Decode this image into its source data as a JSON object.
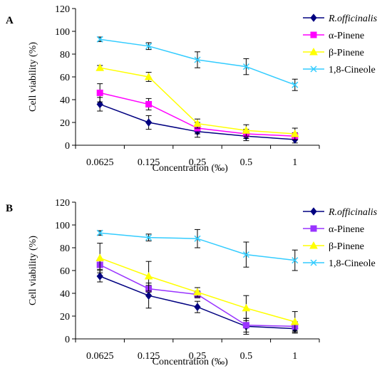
{
  "chart_data": [
    {
      "type": "line",
      "panel_label": "A",
      "categories": [
        "0.0625",
        "0.125",
        "0.25",
        "0.5",
        "1"
      ],
      "xlabel": "Concentration (‰)",
      "ylabel": "Cell viability (%)",
      "ylim": [
        0,
        120
      ],
      "yticks": [
        "0",
        "20",
        "40",
        "60",
        "80",
        "100",
        "120"
      ],
      "legend_position": "top-right",
      "grid": false,
      "series": [
        {
          "name": "R.officinalis",
          "italic": true,
          "color": "#000080",
          "marker": "diamond",
          "values": [
            36,
            20,
            12,
            8,
            5
          ],
          "errors": [
            6,
            6,
            5,
            4,
            3
          ]
        },
        {
          "name": "α-Pinene",
          "color": "#ff00ff",
          "marker": "square",
          "values": [
            46,
            36,
            15,
            10,
            8
          ],
          "errors": [
            8,
            5,
            5,
            4,
            3
          ]
        },
        {
          "name": "β-Pinene",
          "color": "#ffff00",
          "marker": "triangle",
          "values": [
            68,
            60,
            19,
            13,
            10
          ],
          "errors": [
            2,
            4,
            4,
            5,
            5
          ]
        },
        {
          "name": "1,8-Cineole",
          "color": "#33ccff",
          "marker": "x",
          "values": [
            93,
            87,
            75,
            69,
            53
          ],
          "errors": [
            2,
            3,
            7,
            7,
            5
          ]
        }
      ]
    },
    {
      "type": "line",
      "panel_label": "B",
      "categories": [
        "0.0625",
        "0.125",
        "0.25",
        "0.5",
        "1"
      ],
      "xlabel": "Concentration (‰)",
      "ylabel": "Cell viability (%)",
      "ylim": [
        0,
        120
      ],
      "yticks": [
        "0",
        "20",
        "40",
        "60",
        "80",
        "100",
        "120"
      ],
      "legend_position": "top-right",
      "grid": false,
      "series": [
        {
          "name": "R.officinalis",
          "italic": true,
          "color": "#000080",
          "marker": "diamond",
          "values": [
            55,
            38,
            28,
            11,
            9
          ],
          "errors": [
            5,
            11,
            5,
            7,
            4
          ]
        },
        {
          "name": "α-Pinene",
          "color": "#9933ff",
          "marker": "square",
          "values": [
            65,
            44,
            39,
            12,
            11
          ],
          "errors": [
            4,
            3,
            3,
            6,
            4
          ]
        },
        {
          "name": "β-Pinene",
          "color": "#ffff00",
          "marker": "triangle",
          "values": [
            71,
            55,
            41,
            27,
            15
          ],
          "errors": [
            13,
            13,
            4,
            11,
            9
          ]
        },
        {
          "name": "1,8-Cineole",
          "color": "#33ccff",
          "marker": "x",
          "values": [
            93,
            89,
            88,
            74,
            69
          ],
          "errors": [
            2,
            3,
            8,
            11,
            9
          ]
        }
      ]
    }
  ]
}
